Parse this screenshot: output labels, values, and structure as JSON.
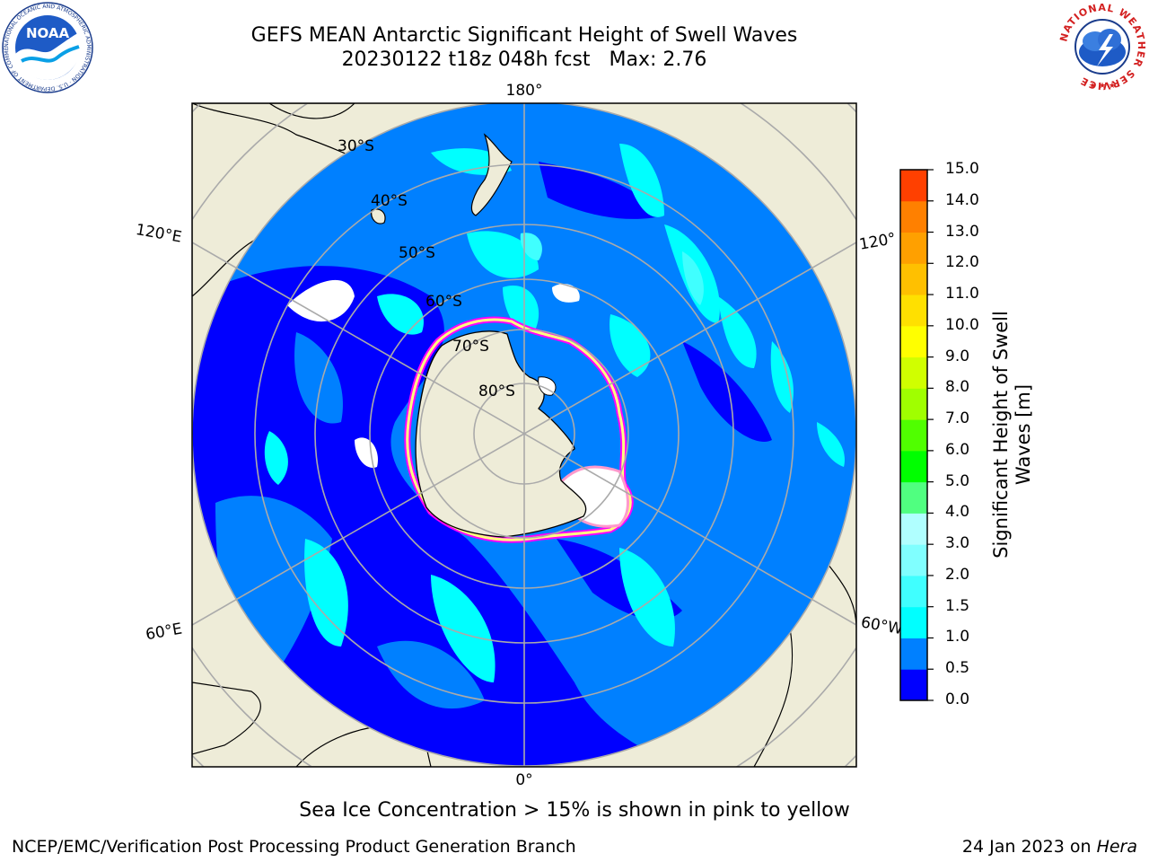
{
  "title": {
    "line1": "GEFS MEAN Antarctic Significant Height of Swell Waves",
    "line2": "20230122 t18z 048h fcst",
    "max": "Max: 2.76"
  },
  "map": {
    "longitude_labels": {
      "top": "180°",
      "bottom": "0°",
      "upper_left": "120°E",
      "lower_left": "60°E",
      "upper_right": "120°",
      "lower_right": "60°W"
    },
    "latitude_labels": [
      "30°S",
      "40°S",
      "50°S",
      "60°S",
      "70°S",
      "80°S"
    ],
    "ocean_colors": [
      "#0000ff",
      "#0080ff",
      "#00ffff",
      "#40ffff",
      "#80ffff"
    ],
    "land_color": "#eeecd8",
    "sea_ice_colors": [
      "#ff00ff",
      "#ff99cc",
      "#ffff80"
    ]
  },
  "colorbar": {
    "label_line1": "Significant Height of Swell",
    "label_line2": "Waves [m]",
    "ticks": [
      "0.0",
      "0.5",
      "1.0",
      "1.5",
      "2.0",
      "3.0",
      "4.0",
      "5.0",
      "6.0",
      "7.0",
      "8.0",
      "9.0",
      "10.0",
      "11.0",
      "12.0",
      "13.0",
      "14.0",
      "15.0"
    ],
    "colors": [
      "#0000ff",
      "#0080ff",
      "#00ffff",
      "#40ffff",
      "#80ffff",
      "#b0ffff",
      "#50ff80",
      "#00ff00",
      "#50ff00",
      "#a0ff00",
      "#d0ff00",
      "#ffff00",
      "#ffe000",
      "#ffc000",
      "#ffa000",
      "#ff8000",
      "#ff4000",
      "#ff0000"
    ]
  },
  "note": "Sea Ice Concentration > 15% is shown in pink to yellow",
  "footer": {
    "left": "NCEP/EMC/Verification Post Processing Product Generation Branch",
    "right_prefix": "24 Jan 2023 on",
    "right_host": "Hera"
  },
  "logos": {
    "noaa_text": "NOAA",
    "noaa_ring": "NATIONAL OCEANIC AND ATMOSPHERIC ADMINISTRATION · U.S. DEPARTMENT OF COMMERCE",
    "nws_ring": "NATIONAL WEATHER SERVICE"
  }
}
